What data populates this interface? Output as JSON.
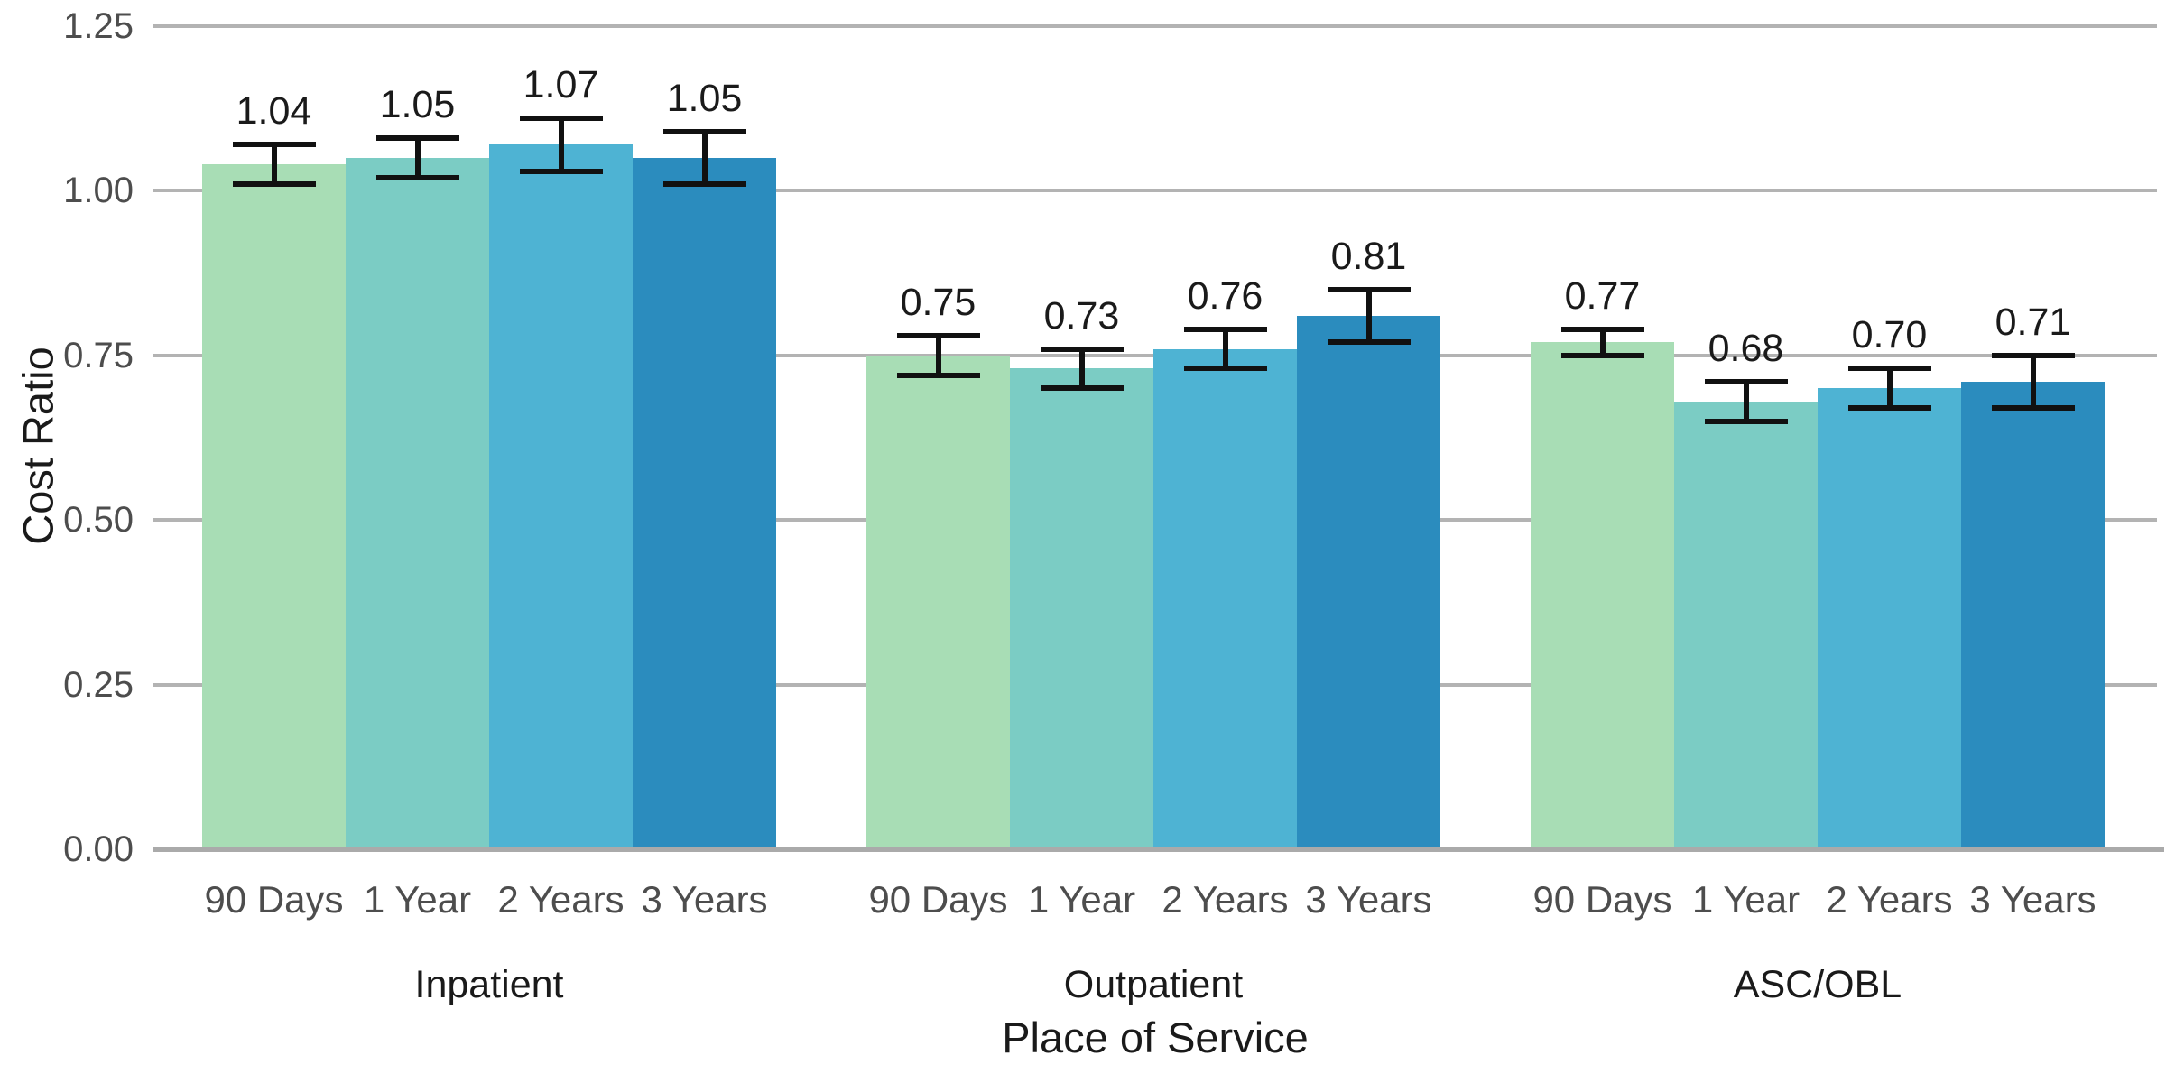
{
  "chart_data": {
    "type": "bar",
    "title": "",
    "xlabel": "Place of Service",
    "ylabel": "Cost Ratio",
    "ylim": [
      0,
      1.25
    ],
    "yticks": [
      0,
      0.25,
      0.5,
      0.75,
      1,
      1.25
    ],
    "ytick_labels": [
      "0.00",
      "0.25",
      "0.50",
      "0.75",
      "1.00",
      "1.25"
    ],
    "grid": "horizontal-major",
    "legend": "none",
    "error_bars_shown": true,
    "bar_value_labels_shown": true,
    "categories": [
      "90 Days",
      "1 Year",
      "2 Years",
      "3 Years"
    ],
    "groups": [
      {
        "label": "Inpatient",
        "values": [
          1.04,
          1.05,
          1.07,
          1.05
        ],
        "value_labels": [
          "1.04",
          "1.05",
          "1.07",
          "1.05"
        ],
        "ci_low": [
          1.01,
          1.02,
          1.03,
          1.01
        ],
        "ci_high": [
          1.07,
          1.08,
          1.11,
          1.09
        ]
      },
      {
        "label": "Outpatient",
        "values": [
          0.75,
          0.73,
          0.76,
          0.81
        ],
        "value_labels": [
          "0.75",
          "0.73",
          "0.76",
          "0.81"
        ],
        "ci_low": [
          0.72,
          0.7,
          0.73,
          0.77
        ],
        "ci_high": [
          0.78,
          0.76,
          0.79,
          0.85
        ]
      },
      {
        "label": "ASC/OBL",
        "values": [
          0.77,
          0.68,
          0.7,
          0.71
        ],
        "value_labels": [
          "0.77",
          "0.68",
          "0.70",
          "0.71"
        ],
        "ci_low": [
          0.75,
          0.65,
          0.67,
          0.67
        ],
        "ci_high": [
          0.79,
          0.71,
          0.73,
          0.75
        ]
      }
    ],
    "colors": {
      "bar_palette": [
        "#a8ddb5",
        "#7bccc4",
        "#4eb3d3",
        "#2b8cbe"
      ],
      "gridline": "#b3b3b3",
      "axis_line": "#aaaaaa",
      "axis_tick_text": "#4d4d4d",
      "text_black": "#1a1a1a",
      "error_bar": "#111111",
      "background": "#ffffff"
    }
  }
}
